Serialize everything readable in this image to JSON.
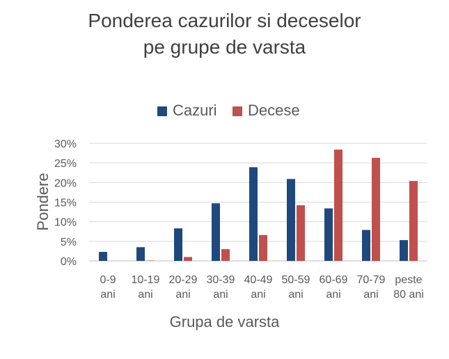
{
  "chart_data": {
    "type": "bar",
    "title_lines": [
      "Ponderea cazurilor si deceselor",
      "pe grupe de varsta"
    ],
    "xlabel": "Grupa de varsta",
    "ylabel": "Pondere",
    "categories": [
      [
        "0-9",
        "ani"
      ],
      [
        "10-19",
        "ani"
      ],
      [
        "20-29",
        "ani"
      ],
      [
        "30-39",
        "ani"
      ],
      [
        "40-49",
        "ani"
      ],
      [
        "50-59",
        "ani"
      ],
      [
        "60-69",
        "ani"
      ],
      [
        "70-79",
        "ani"
      ],
      [
        "peste",
        "80 ani"
      ]
    ],
    "series": [
      {
        "name": "Cazuri",
        "color": "#1F497D",
        "values": [
          2.3,
          3.5,
          8.3,
          14.7,
          23.9,
          20.9,
          13.4,
          7.9,
          5.3
        ]
      },
      {
        "name": "Decese",
        "color": "#C0504D",
        "values": [
          0.0,
          0.1,
          1.0,
          3.0,
          6.6,
          14.2,
          28.4,
          26.3,
          20.4
        ]
      }
    ],
    "yticks": [
      "0%",
      "5%",
      "10%",
      "15%",
      "20%",
      "25%",
      "30%"
    ],
    "ylim": [
      0,
      30
    ],
    "grid": true,
    "legend_position": "top"
  }
}
